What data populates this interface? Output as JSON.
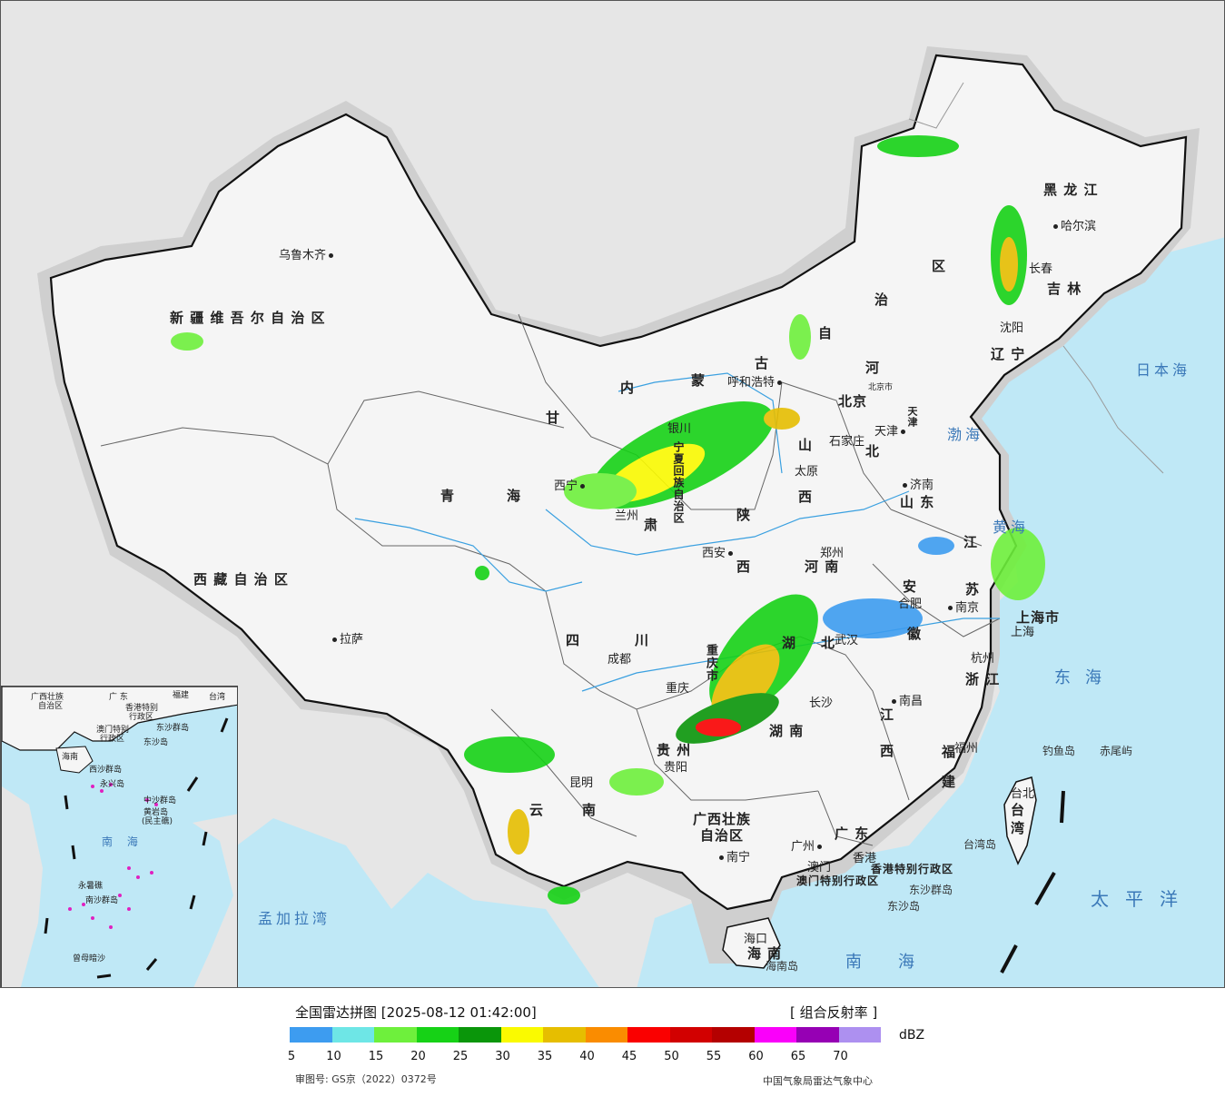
{
  "map": {
    "province_labels": [
      {
        "key": "xinjiang",
        "text": "新 疆 维 吾 尔 自 治 区"
      },
      {
        "key": "xizang",
        "text": "西 藏 自 治 区"
      },
      {
        "key": "qinghai1",
        "text": "青"
      },
      {
        "key": "qinghai2",
        "text": "海"
      },
      {
        "key": "gansu",
        "text": "甘"
      },
      {
        "key": "neimeng1",
        "text": "内"
      },
      {
        "key": "neimeng2",
        "text": "蒙"
      },
      {
        "key": "neimeng3",
        "text": "古"
      },
      {
        "key": "neimeng4",
        "text": "自"
      },
      {
        "key": "neimeng5",
        "text": "治"
      },
      {
        "key": "neimeng6",
        "text": "区"
      },
      {
        "key": "heilongjiang",
        "text": "黑  龙  江"
      },
      {
        "key": "jilin",
        "text": "吉  林"
      },
      {
        "key": "liaoning",
        "text": "辽  宁"
      },
      {
        "key": "hebei1",
        "text": "河"
      },
      {
        "key": "hebei2",
        "text": "北"
      },
      {
        "key": "shanxi1",
        "text": "山"
      },
      {
        "key": "shanxi2",
        "text": "西"
      },
      {
        "key": "shaanxi1",
        "text": "陕"
      },
      {
        "key": "shaanxi2",
        "text": "西"
      },
      {
        "key": "ningxia",
        "text": "宁夏回族自治区"
      },
      {
        "key": "shandong",
        "text": "山  东"
      },
      {
        "key": "henan",
        "text": "河  南"
      },
      {
        "key": "jiangsu1",
        "text": "江"
      },
      {
        "key": "jiangsu2",
        "text": "苏"
      },
      {
        "key": "anhui1",
        "text": "安"
      },
      {
        "key": "anhui2",
        "text": "徽"
      },
      {
        "key": "hubei1",
        "text": "湖"
      },
      {
        "key": "hubei2",
        "text": "北"
      },
      {
        "key": "sichuan1",
        "text": "四"
      },
      {
        "key": "sichuan2",
        "text": "川"
      },
      {
        "key": "chongqing",
        "text": "重庆市"
      },
      {
        "key": "zhejiang",
        "text": "浙  江"
      },
      {
        "key": "jiangxi1",
        "text": "江"
      },
      {
        "key": "jiangxi2",
        "text": "西"
      },
      {
        "key": "hunan",
        "text": "湖  南"
      },
      {
        "key": "guizhou",
        "text": "贵  州"
      },
      {
        "key": "fujian1",
        "text": "福"
      },
      {
        "key": "fujian2",
        "text": "建"
      },
      {
        "key": "yunnan1",
        "text": "云"
      },
      {
        "key": "yunnan2",
        "text": "南"
      },
      {
        "key": "guangxi1",
        "text": "广西壮族"
      },
      {
        "key": "guangxi2",
        "text": "自治区"
      },
      {
        "key": "guangdong",
        "text": "广  东"
      },
      {
        "key": "hainan1",
        "text": "海"
      },
      {
        "key": "hainan2",
        "text": "南"
      },
      {
        "key": "taiwan1",
        "text": "台"
      },
      {
        "key": "taiwan2",
        "text": "湾"
      },
      {
        "key": "shanghai",
        "text": "上海市"
      },
      {
        "key": "beijing",
        "text": "北京"
      },
      {
        "key": "tianjin",
        "text": "天津"
      },
      {
        "key": "gansu2",
        "text": "肃"
      },
      {
        "key": "hk",
        "text": "香港特别行政区"
      },
      {
        "key": "macau",
        "text": "澳门特别行政区"
      }
    ],
    "city_labels": [
      {
        "key": "urumqi",
        "text": "乌鲁木齐"
      },
      {
        "key": "lhasa",
        "text": "拉萨"
      },
      {
        "key": "xining",
        "text": "西宁"
      },
      {
        "key": "lanzhou",
        "text": "兰州"
      },
      {
        "key": "yinchuan",
        "text": "银川"
      },
      {
        "key": "hohhot",
        "text": "呼和浩特"
      },
      {
        "key": "harbin",
        "text": "哈尔滨"
      },
      {
        "key": "changchun",
        "text": "长春"
      },
      {
        "key": "shenyang",
        "text": "沈阳"
      },
      {
        "key": "beijing_c",
        "text": "北京市"
      },
      {
        "key": "tianjin_c",
        "text": "天津"
      },
      {
        "key": "shijiazhuang",
        "text": "石家庄"
      },
      {
        "key": "taiyuan",
        "text": "太原"
      },
      {
        "key": "jinan",
        "text": "济南"
      },
      {
        "key": "xian",
        "text": "西安"
      },
      {
        "key": "zhengzhou",
        "text": "郑州"
      },
      {
        "key": "hefei",
        "text": "合肥"
      },
      {
        "key": "nanjing",
        "text": "南京"
      },
      {
        "key": "shanghai_c",
        "text": "上海"
      },
      {
        "key": "hangzhou",
        "text": "杭州"
      },
      {
        "key": "wuhan",
        "text": "武汉"
      },
      {
        "key": "chengdu",
        "text": "成都"
      },
      {
        "key": "chongqing_c",
        "text": "重庆"
      },
      {
        "key": "changsha",
        "text": "长沙"
      },
      {
        "key": "nanchang",
        "text": "南昌"
      },
      {
        "key": "guiyang",
        "text": "贵阳"
      },
      {
        "key": "fuzhou",
        "text": "福州"
      },
      {
        "key": "kunming",
        "text": "昆明"
      },
      {
        "key": "nanning",
        "text": "南宁"
      },
      {
        "key": "guangzhou",
        "text": "广州"
      },
      {
        "key": "hongkong",
        "text": "香港"
      },
      {
        "key": "macao",
        "text": "澳门"
      },
      {
        "key": "haikou",
        "text": "海口"
      },
      {
        "key": "taibei",
        "text": "台北"
      }
    ],
    "sea_labels": [
      {
        "key": "japan_sea",
        "text": "日本海"
      },
      {
        "key": "bohai",
        "text": "渤海"
      },
      {
        "key": "yellow_sea",
        "text": "黄海"
      },
      {
        "key": "east_sea",
        "text": "东海"
      },
      {
        "key": "south_sea",
        "text": "南海"
      },
      {
        "key": "pacific",
        "text": "太平洋"
      },
      {
        "key": "bengal",
        "text": "孟加拉湾"
      }
    ],
    "island_labels": [
      {
        "key": "diaoyu",
        "text": "钓鱼岛"
      },
      {
        "key": "chiwei",
        "text": "赤尾屿"
      },
      {
        "key": "taiwan_island",
        "text": "台湾岛"
      },
      {
        "key": "dongsha",
        "text": "东沙群岛"
      },
      {
        "key": "dongsha2",
        "text": "东沙岛"
      },
      {
        "key": "hainan_island",
        "text": "海南岛"
      }
    ],
    "inset_labels": [
      {
        "key": "i_guangxi",
        "text": "广西壮族"
      },
      {
        "key": "i_zizhiqu",
        "text": "自治区"
      },
      {
        "key": "i_guangdong",
        "text": "广  东"
      },
      {
        "key": "i_fujian",
        "text": "福建"
      },
      {
        "key": "i_taiwan",
        "text": "台湾"
      },
      {
        "key": "i_hk",
        "text": "香港特别"
      },
      {
        "key": "i_hk2",
        "text": "行政区"
      },
      {
        "key": "i_macau",
        "text": "澳门特别"
      },
      {
        "key": "i_macau2",
        "text": "行政区"
      },
      {
        "key": "i_dongsha",
        "text": "东沙群岛"
      },
      {
        "key": "i_dongsha2",
        "text": "东沙岛"
      },
      {
        "key": "i_hainan",
        "text": "海南"
      },
      {
        "key": "i_xisha",
        "text": "西沙群岛"
      },
      {
        "key": "i_yongxing",
        "text": "永兴岛"
      },
      {
        "key": "i_zhongsha",
        "text": "中沙群岛"
      },
      {
        "key": "i_huangyan",
        "text": "黄岩岛"
      },
      {
        "key": "i_minzhu",
        "text": "(民主礁)"
      },
      {
        "key": "i_nanhai",
        "text": "南  海"
      },
      {
        "key": "i_yongshu",
        "text": "永暑礁"
      },
      {
        "key": "i_nansha",
        "text": "南沙群岛"
      },
      {
        "key": "i_zengmu",
        "text": "曾母暗沙"
      }
    ]
  },
  "legend": {
    "title": "全国雷达拼图 [2025-08-12 01:42:00]",
    "product": "[ 组合反射率 ]",
    "unit": "dBZ",
    "colors": [
      "#3d9cf0",
      "#6ee6e6",
      "#6ef03c",
      "#16d216",
      "#0a960a",
      "#fafa00",
      "#e6be00",
      "#fa8c00",
      "#fa0000",
      "#d20000",
      "#b40000",
      "#fa00fa",
      "#9600b4",
      "#ad90f0"
    ],
    "ticks": [
      "5",
      "10",
      "15",
      "20",
      "25",
      "30",
      "35",
      "40",
      "45",
      "50",
      "55",
      "60",
      "65",
      "70"
    ],
    "review_number": "审图号: GS京（2022）0372号",
    "source": "中国气象局雷达气象中心"
  },
  "colors": {
    "ocean": "#bfe8f6",
    "land_china": "#f7f7f7",
    "land_other": "#e6e6e6",
    "border": "#111111"
  }
}
